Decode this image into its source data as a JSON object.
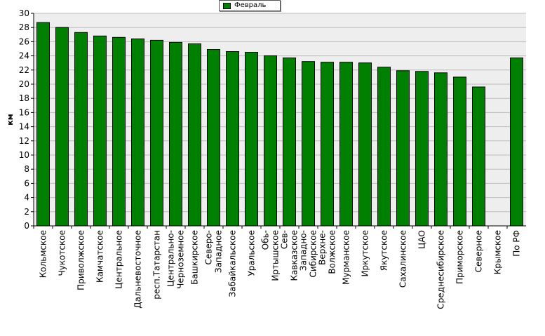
{
  "colors": {
    "bar": "#008000",
    "plot_background": "#eeeeee",
    "grid": "#bbbbbb",
    "axis": "#000000"
  },
  "chart_data": {
    "type": "bar",
    "title": "",
    "xlabel": "",
    "ylabel": "км",
    "ylim": [
      0,
      30
    ],
    "yticks": [
      0,
      2,
      4,
      6,
      8,
      10,
      12,
      14,
      16,
      18,
      20,
      22,
      24,
      26,
      28,
      30
    ],
    "grid": true,
    "legend_position": "top-center",
    "categories": [
      "Кольмское",
      "Чукотское",
      "Приволжское",
      "Камчатское",
      "Центральное",
      "Дальневосточное",
      "респ.Татарстан",
      "Центрально-\nЧерноземное",
      "Башкирское",
      "Северо-\nЗападное",
      "Забайкальское",
      "Уральское",
      "Обь-\nИртышское",
      "Сев-\nКавказское",
      "Западно-\nСибирское",
      "Верхне-\nВолжское",
      "Мурманское",
      "Иркутское",
      "Якутское",
      "Сахалинское",
      "ЦАО",
      "Среднесибирское",
      "Приморское",
      "Северное",
      "Крымское",
      "По РФ"
    ],
    "series": [
      {
        "name": "Февраль",
        "values": [
          28.7,
          28.0,
          27.3,
          26.8,
          26.6,
          26.4,
          26.2,
          25.9,
          25.7,
          24.9,
          24.6,
          24.5,
          24.0,
          23.7,
          23.2,
          23.1,
          23.1,
          23.0,
          22.4,
          21.9,
          21.8,
          21.6,
          21.0,
          19.6,
          0,
          23.7
        ]
      }
    ]
  }
}
